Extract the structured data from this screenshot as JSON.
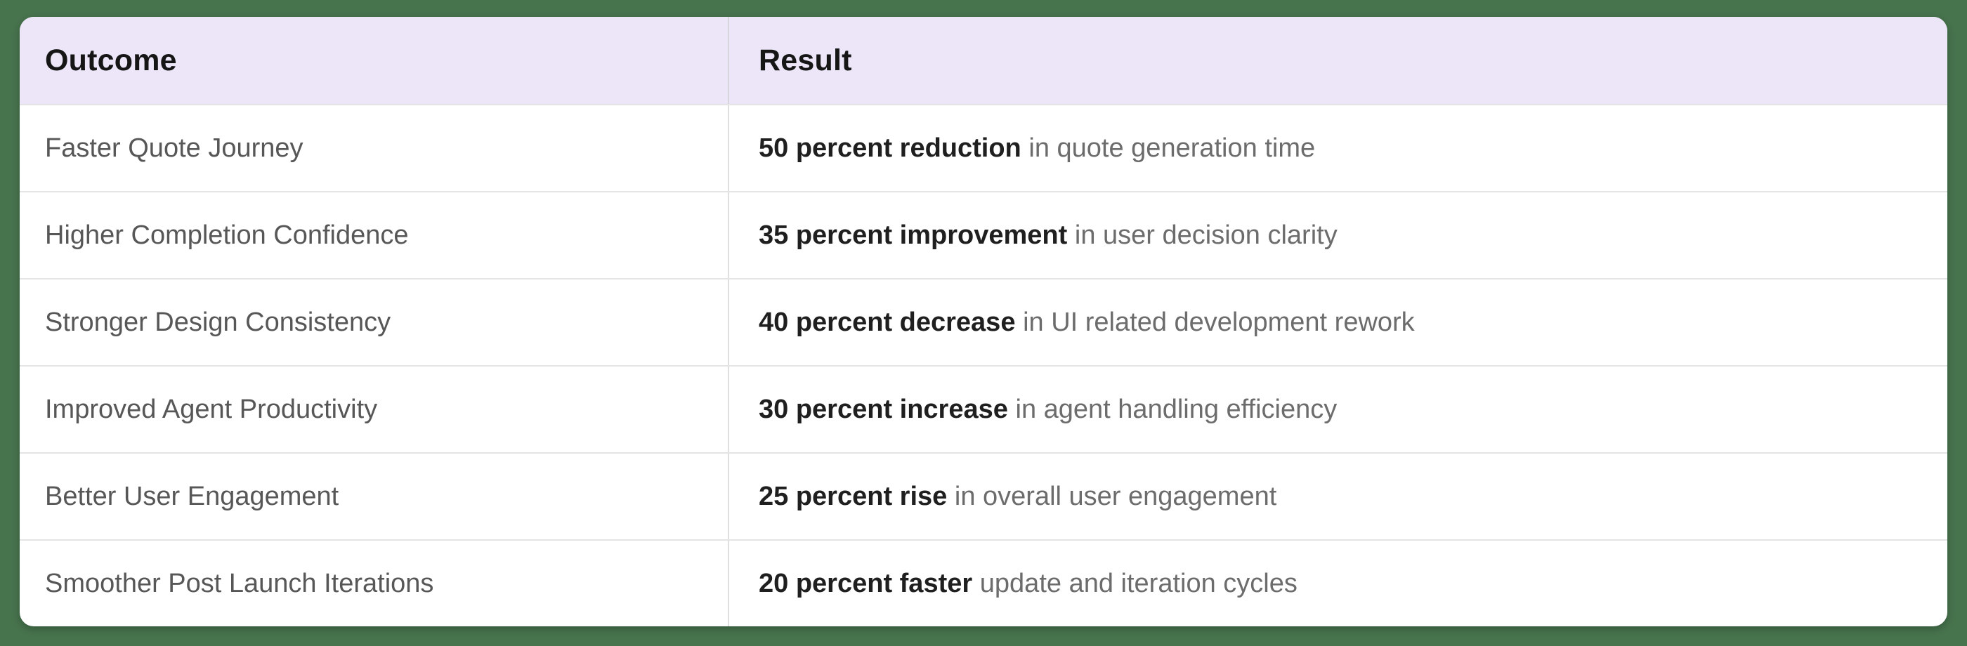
{
  "page": {
    "background_color": "#47734D",
    "card_color": "#FFFFFF",
    "header_background_color": "#ECE6F8",
    "divider_color": "#E0E0E0"
  },
  "table": {
    "header": {
      "outcome_label": "Outcome",
      "result_label": "Result"
    },
    "rows": [
      {
        "outcome": "Faster Quote Journey",
        "result_emphasis": "50 percent reduction",
        "result_detail": "in quote generation time"
      },
      {
        "outcome": "Higher Completion Confidence",
        "result_emphasis": "35 percent improvement",
        "result_detail": "in user decision clarity"
      },
      {
        "outcome": "Stronger Design Consistency",
        "result_emphasis": "40 percent decrease",
        "result_detail": "in UI related development rework"
      },
      {
        "outcome": "Improved Agent Productivity",
        "result_emphasis": "30 percent increase",
        "result_detail": "in agent handling efficiency"
      },
      {
        "outcome": "Better User Engagement",
        "result_emphasis": "25 percent rise",
        "result_detail": "in overall user engagement"
      },
      {
        "outcome": "Smoother Post Launch Iterations",
        "result_emphasis": "20 percent faster",
        "result_detail": "update and iteration cycles"
      }
    ]
  }
}
